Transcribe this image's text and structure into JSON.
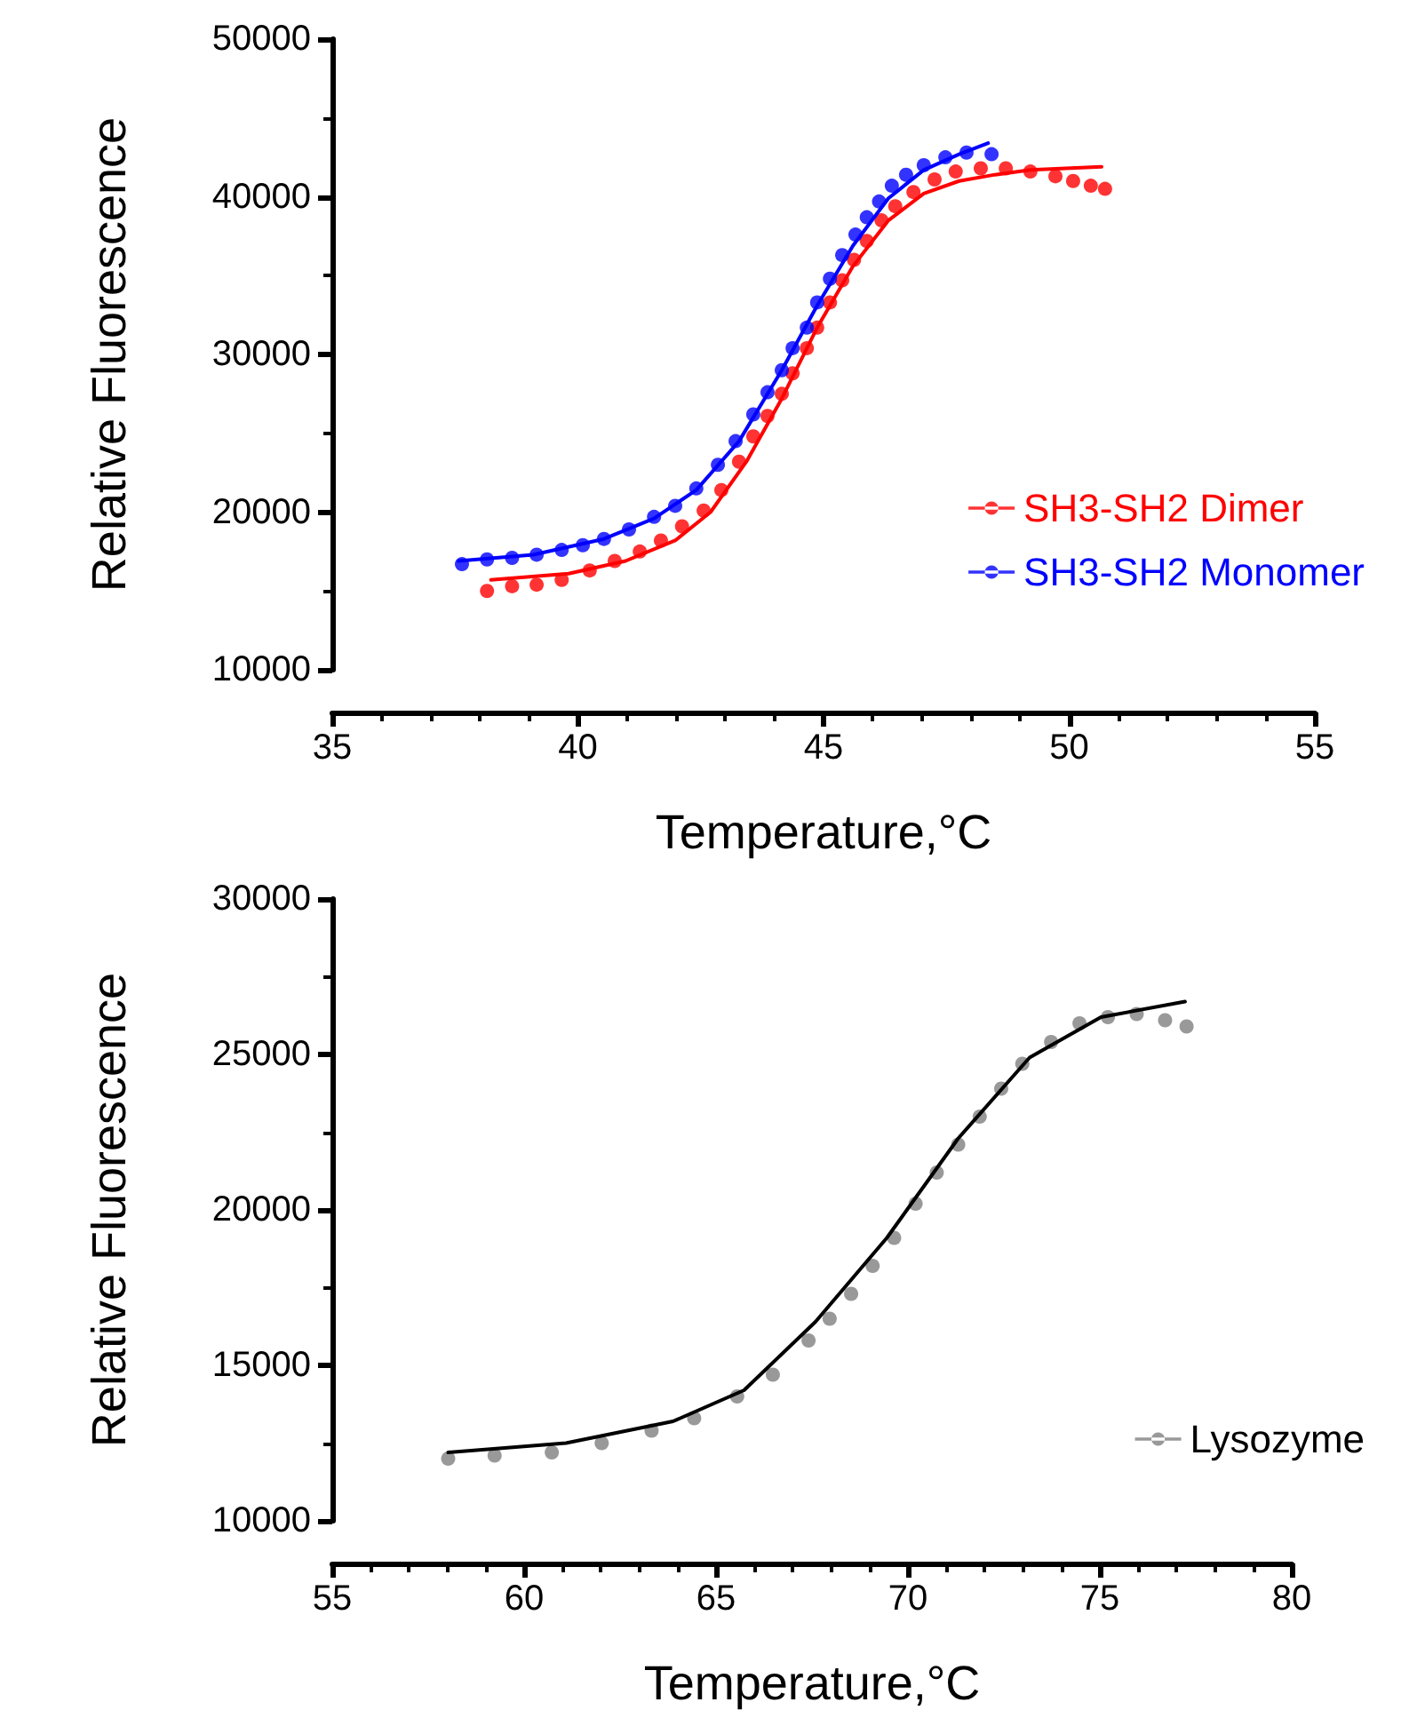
{
  "chart_data": [
    {
      "type": "scatter",
      "xlabel": "Temperature,°C",
      "ylabel": "Relative Fluorescence",
      "xlim": [
        35,
        55
      ],
      "xticks": [
        35,
        40,
        45,
        50,
        55
      ],
      "ylim": [
        10000,
        50000
      ],
      "yticks": [
        10000,
        20000,
        30000,
        40000,
        50000
      ],
      "grid": false,
      "legend": "bottom right",
      "marker": "circle",
      "series": [
        {
          "name": "SH3-SH2 Dimer",
          "color": "#ff0000",
          "x": [
            38.15,
            38.66,
            39.16,
            39.67,
            40.24,
            40.75,
            41.26,
            41.69,
            42.12,
            42.56,
            42.92,
            43.28,
            43.57,
            43.86,
            44.15,
            44.37,
            44.66,
            44.87,
            45.13,
            45.38,
            45.62,
            45.88,
            46.18,
            46.46,
            46.83,
            47.26,
            47.69,
            48.2,
            48.71,
            49.21,
            49.72,
            50.08,
            50.44,
            50.73
          ],
          "values": [
            15000,
            15300,
            15400,
            15700,
            16300,
            16900,
            17500,
            18200,
            19100,
            20100,
            21400,
            23200,
            24800,
            26100,
            27500,
            28800,
            30400,
            31700,
            33300,
            34700,
            36000,
            37200,
            38500,
            39400,
            40300,
            41100,
            41600,
            41800,
            41800,
            41600,
            41300,
            41000,
            40700,
            40500
          ]
        },
        {
          "type": "line",
          "color": "#ff0000",
          "marker": "none",
          "x": [
            38.23,
            39.81,
            40.97,
            41.98,
            42.7,
            43.43,
            44.15,
            44.87,
            45.6,
            46.32,
            47.04,
            47.76,
            48.49,
            49.21,
            50.66
          ],
          "values": [
            15700,
            16100,
            16900,
            18200,
            20000,
            23200,
            27200,
            31700,
            35600,
            38500,
            40200,
            41000,
            41400,
            41700,
            41900
          ]
        },
        {
          "name": "SH3-SH2 Monomer",
          "color": "#0000ff",
          "x": [
            37.64,
            38.15,
            38.66,
            39.16,
            39.67,
            40.1,
            40.53,
            41.04,
            41.55,
            41.98,
            42.41,
            42.85,
            43.21,
            43.57,
            43.86,
            44.15,
            44.37,
            44.66,
            44.87,
            45.13,
            45.38,
            45.65,
            45.88,
            46.13,
            46.39,
            46.68,
            47.04,
            47.48,
            47.91,
            48.42
          ],
          "values": [
            16700,
            17000,
            17100,
            17300,
            17600,
            17900,
            18300,
            18900,
            19700,
            20400,
            21500,
            23000,
            24500,
            26200,
            27600,
            29000,
            30400,
            31700,
            33300,
            34800,
            36300,
            37600,
            38700,
            39700,
            40700,
            41400,
            42000,
            42500,
            42800,
            42700
          ]
        },
        {
          "type": "line",
          "color": "#0000ff",
          "marker": "none",
          "x": [
            37.57,
            39.09,
            40.53,
            41.55,
            42.41,
            43.28,
            44.15,
            44.87,
            45.6,
            46.32,
            47.04,
            47.76,
            48.35
          ],
          "values": [
            16900,
            17300,
            18300,
            19600,
            21400,
            24500,
            29000,
            33100,
            36900,
            39900,
            41700,
            42700,
            43400
          ]
        }
      ]
    },
    {
      "type": "scatter",
      "xlabel": "Temperature,°C",
      "ylabel": "Relative Fluorescence",
      "xlim": [
        55,
        80
      ],
      "xticks": [
        55,
        60,
        65,
        70,
        75,
        80
      ],
      "ylim": [
        10000,
        30000
      ],
      "yticks": [
        10000,
        15000,
        20000,
        25000,
        30000
      ],
      "grid": false,
      "legend": "bottom right",
      "marker": "circle",
      "series": [
        {
          "name": "Lysozyme",
          "color": "#808080",
          "x": [
            58.02,
            59.23,
            60.72,
            62.02,
            63.32,
            64.43,
            65.55,
            66.48,
            67.41,
            67.96,
            68.52,
            69.08,
            69.64,
            70.2,
            70.75,
            71.31,
            71.87,
            72.43,
            72.98,
            73.73,
            74.47,
            75.21,
            75.96,
            76.7,
            77.26
          ],
          "values": [
            12000,
            12100,
            12200,
            12500,
            12900,
            13300,
            14000,
            14700,
            15800,
            16500,
            17300,
            18200,
            19100,
            20200,
            21200,
            22100,
            23000,
            23900,
            24700,
            25400,
            26000,
            26200,
            26300,
            26100,
            25900
          ]
        },
        {
          "type": "line",
          "color": "#000000",
          "marker": "none",
          "x": [
            58.02,
            61.09,
            63.88,
            65.73,
            67.59,
            69.45,
            71.31,
            73.17,
            75.03,
            77.22
          ],
          "values": [
            12200,
            12500,
            13200,
            14200,
            16400,
            19100,
            22300,
            24900,
            26200,
            26700
          ]
        }
      ]
    }
  ]
}
